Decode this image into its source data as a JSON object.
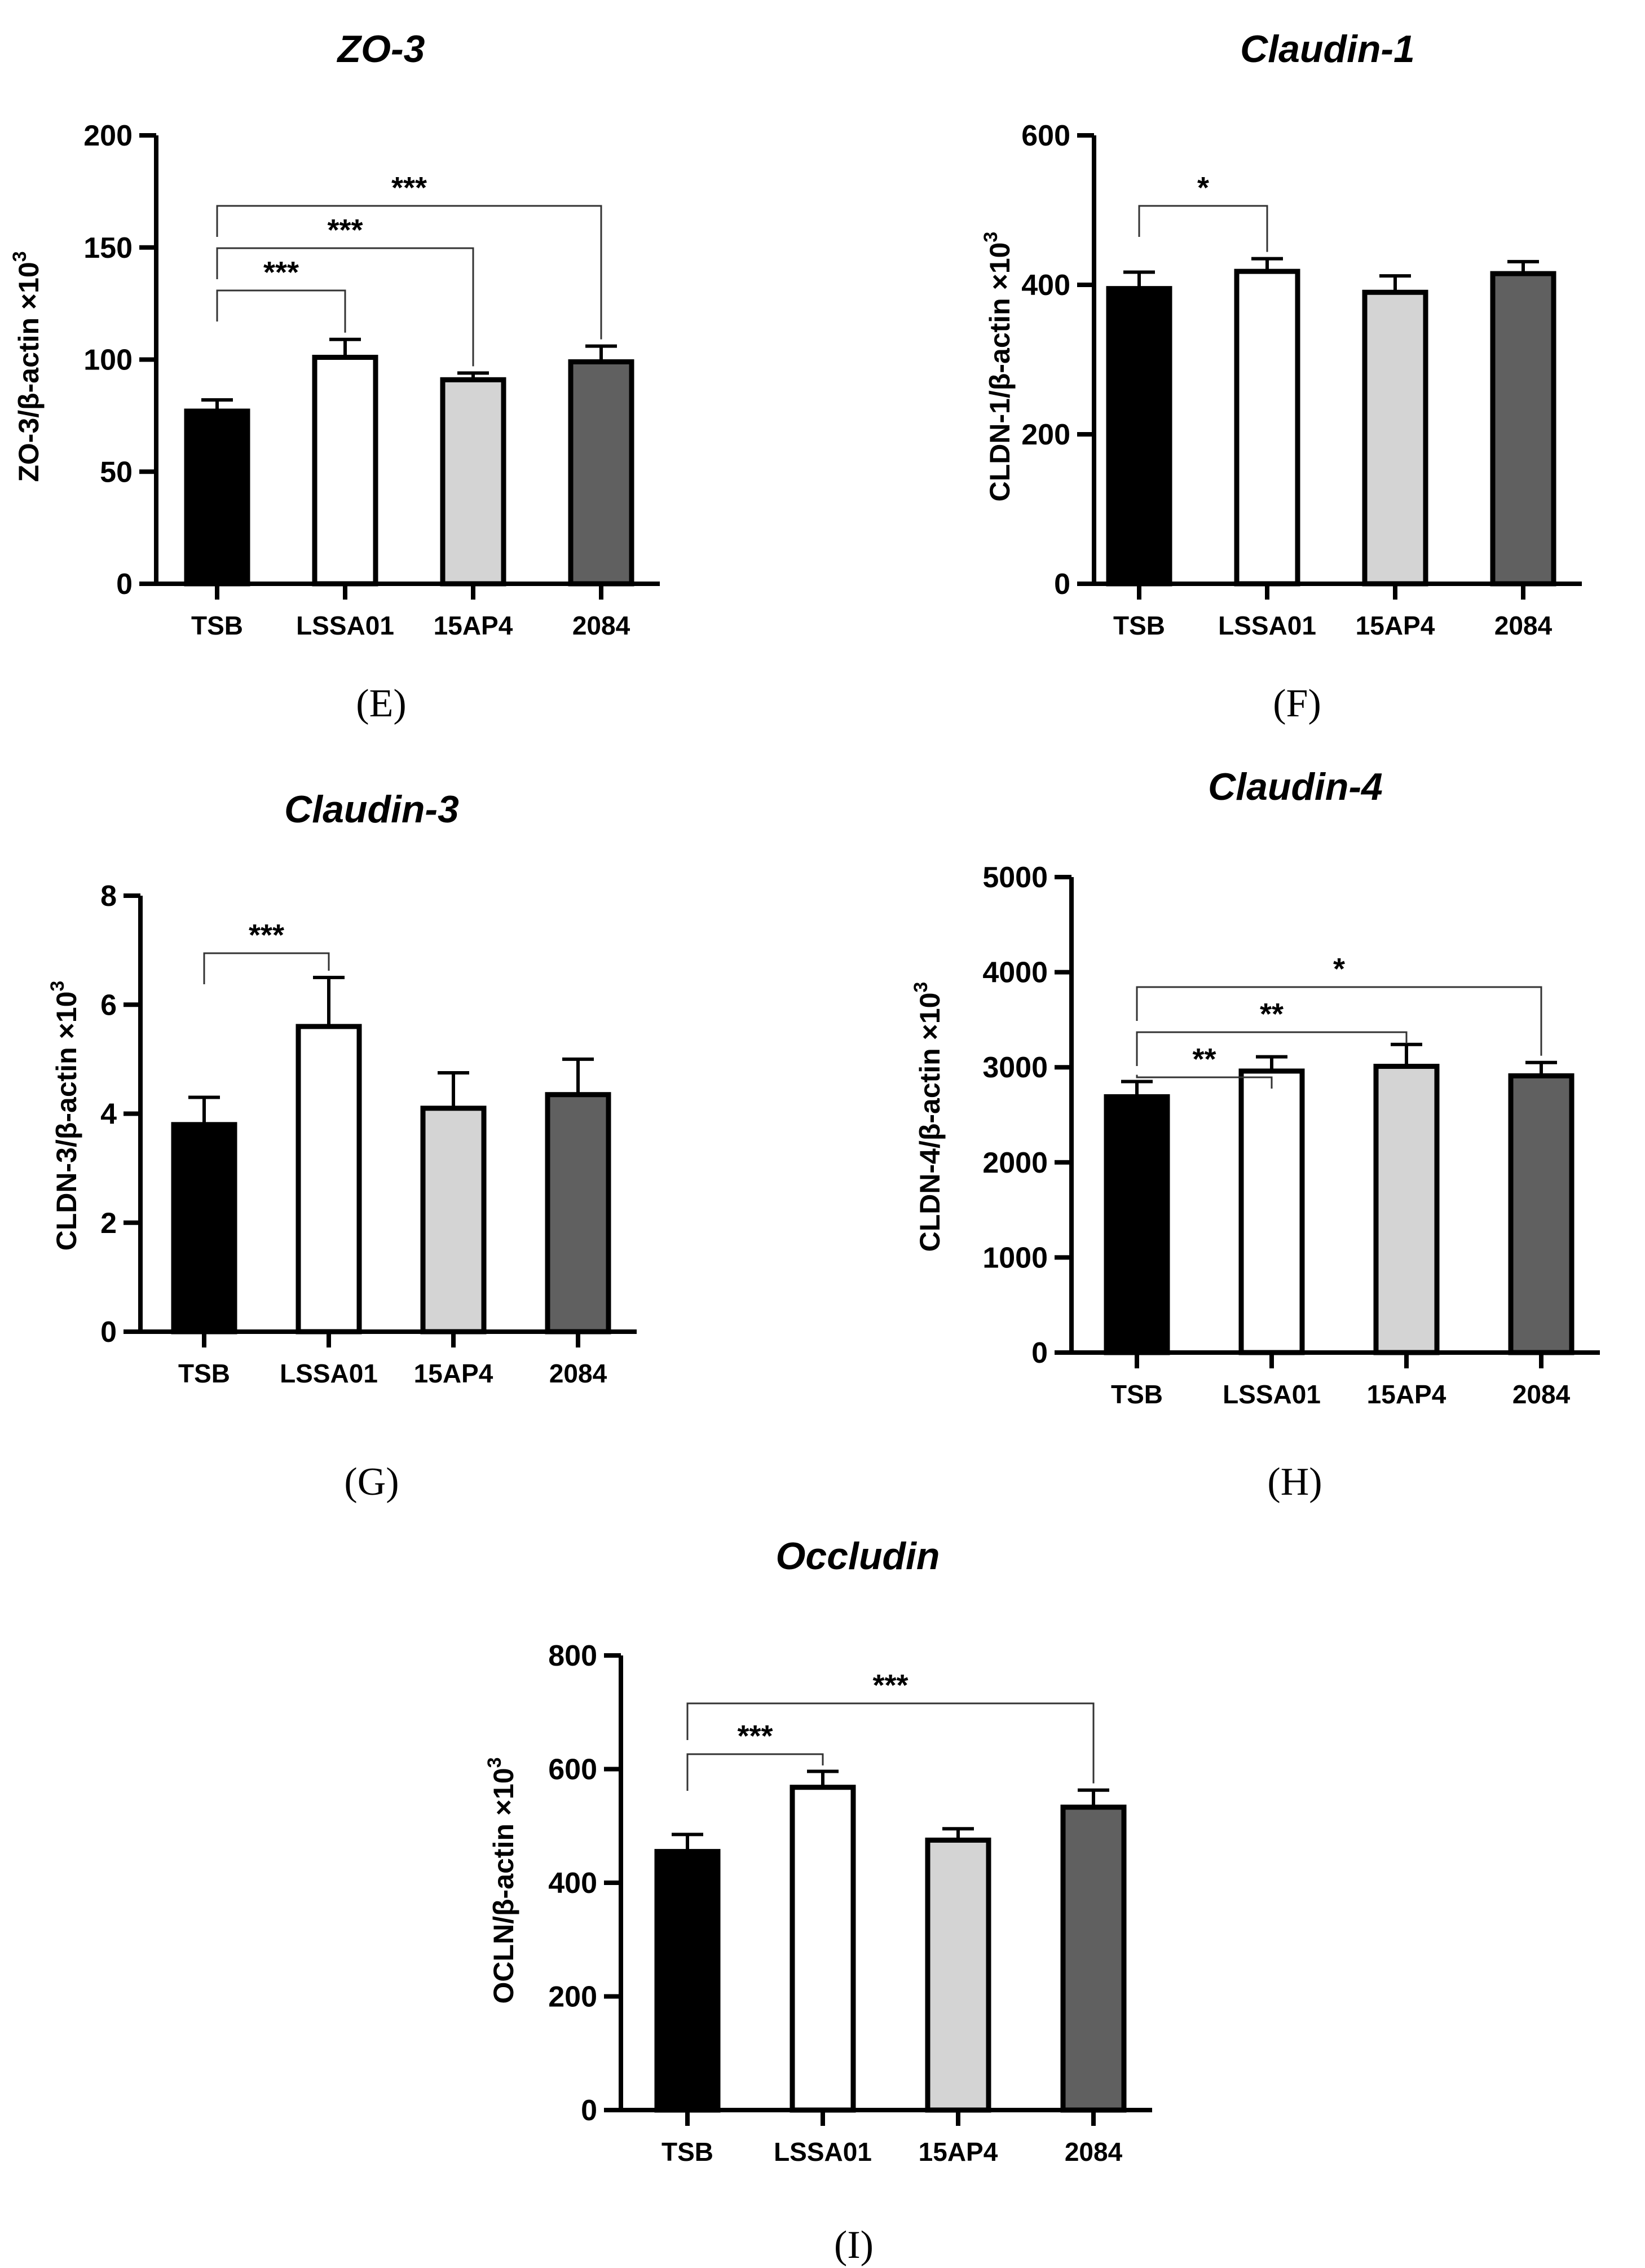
{
  "figure": {
    "colors": {
      "TSB": "#000000",
      "LSSA01": "#ffffff",
      "15AP4": "#d4d4d4",
      "2084": "#606060",
      "axis": "#000000",
      "bracket": "#333333"
    }
  },
  "chart_data": [
    {
      "panel": "(E)",
      "type": "bar",
      "title": "ZO-3",
      "ylabel": "ZO-3/β-actin ×10",
      "ylabel_sup": "3",
      "categories": [
        "TSB",
        "LSSA01",
        "15AP4",
        "2084"
      ],
      "values": [
        77,
        101,
        91,
        99
      ],
      "errors": [
        5,
        8,
        3,
        7
      ],
      "ylim": [
        0,
        200
      ],
      "yticks": [
        0,
        50,
        100,
        150,
        200
      ],
      "significance": [
        {
          "from": 0,
          "to": 1,
          "label": "***"
        },
        {
          "from": 0,
          "to": 2,
          "label": "***"
        },
        {
          "from": 0,
          "to": 3,
          "label": "***"
        }
      ]
    },
    {
      "panel": "(F)",
      "type": "bar",
      "title": "Claudin-1",
      "ylabel": "CLDN-1/β-actin ×10",
      "ylabel_sup": "3",
      "categories": [
        "TSB",
        "LSSA01",
        "15AP4",
        "2084"
      ],
      "values": [
        395,
        418,
        390,
        415
      ],
      "errors": [
        22,
        17,
        22,
        16
      ],
      "ylim": [
        0,
        600
      ],
      "yticks": [
        0,
        200,
        400,
        600
      ],
      "significance": [
        {
          "from": 0,
          "to": 1,
          "label": "*"
        }
      ]
    },
    {
      "panel": "(G)",
      "type": "bar",
      "title": "Claudin-3",
      "ylabel": "CLDN-3/β-actin ×10",
      "ylabel_sup": "3",
      "categories": [
        "TSB",
        "LSSA01",
        "15AP4",
        "2084"
      ],
      "values": [
        3.8,
        5.6,
        4.1,
        4.35
      ],
      "errors": [
        0.5,
        0.9,
        0.65,
        0.65
      ],
      "ylim": [
        0,
        8
      ],
      "yticks": [
        0,
        2,
        4,
        6,
        8
      ],
      "significance": [
        {
          "from": 0,
          "to": 1,
          "label": "***"
        }
      ]
    },
    {
      "panel": "(H)",
      "type": "bar",
      "title": "Claudin-4",
      "ylabel": "CLDN-4/β-actin ×10",
      "ylabel_sup": "3",
      "categories": [
        "TSB",
        "LSSA01",
        "15AP4",
        "2084"
      ],
      "values": [
        2690,
        2960,
        3010,
        2910
      ],
      "errors": [
        160,
        150,
        230,
        140
      ],
      "ylim": [
        0,
        5000
      ],
      "yticks": [
        0,
        1000,
        2000,
        3000,
        4000,
        5000
      ],
      "significance": [
        {
          "from": 0,
          "to": 1,
          "label": "**"
        },
        {
          "from": 0,
          "to": 2,
          "label": "**"
        },
        {
          "from": 0,
          "to": 3,
          "label": "*"
        }
      ]
    },
    {
      "panel": "(I)",
      "type": "bar",
      "title": "Occludin",
      "ylabel": "OCLN/β-actin ×10",
      "ylabel_sup": "3",
      "categories": [
        "TSB",
        "LSSA01",
        "15AP4",
        "2084"
      ],
      "values": [
        455,
        568,
        475,
        533
      ],
      "errors": [
        30,
        28,
        20,
        30
      ],
      "ylim": [
        0,
        800
      ],
      "yticks": [
        0,
        200,
        400,
        600,
        800
      ],
      "significance": [
        {
          "from": 0,
          "to": 1,
          "label": "***"
        },
        {
          "from": 0,
          "to": 3,
          "label": "***"
        }
      ]
    }
  ]
}
